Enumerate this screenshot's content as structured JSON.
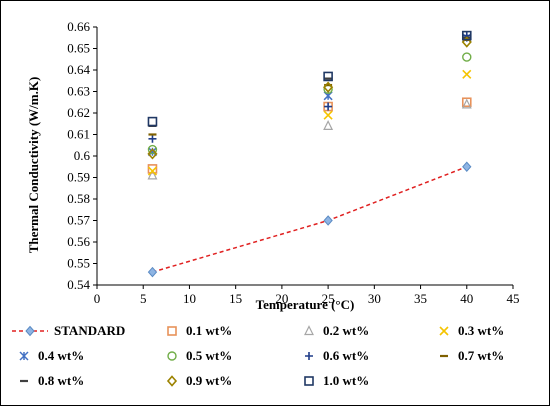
{
  "chart_data": {
    "type": "scatter",
    "title": "",
    "xlabel": "Temperature (°C)",
    "ylabel": "Thermal Conductivity (W/m.K)",
    "xlim": [
      0,
      45
    ],
    "ylim": [
      0.54,
      0.66
    ],
    "xticks": [
      "0",
      "5",
      "10",
      "15",
      "20",
      "25",
      "30",
      "35",
      "40",
      "45"
    ],
    "yticks": [
      "0.54",
      "0.55",
      "0.56",
      "0.57",
      "0.58",
      "0.59",
      "0.6",
      "0.61",
      "0.62",
      "0.63",
      "0.64",
      "0.65",
      "0.66"
    ],
    "grid": false,
    "legend_position": "bottom",
    "x": [
      6,
      25,
      40
    ],
    "series": [
      {
        "name": "STANDARD",
        "values": [
          0.546,
          0.57,
          0.595
        ],
        "marker": "diamond-filled",
        "color": "#8EB4E3",
        "line": "dashed",
        "line_color": "#E02020"
      },
      {
        "name": "0.1 wt%",
        "values": [
          0.594,
          0.623,
          0.625
        ],
        "marker": "square-open",
        "color": "#E8925A"
      },
      {
        "name": "0.2 wt%",
        "values": [
          0.591,
          0.614,
          0.624
        ],
        "marker": "triangle-open",
        "color": "#A6A6A6"
      },
      {
        "name": "0.3 wt%",
        "values": [
          0.593,
          0.619,
          0.638
        ],
        "marker": "x",
        "color": "#F5C400"
      },
      {
        "name": "0.4 wt%",
        "values": [
          0.602,
          0.628,
          0.655
        ],
        "marker": "asterisk",
        "color": "#4472C4"
      },
      {
        "name": "0.5 wt%",
        "values": [
          0.603,
          0.631,
          0.646
        ],
        "marker": "circle-open",
        "color": "#70AD47"
      },
      {
        "name": "0.6 wt%",
        "values": [
          0.608,
          0.623,
          0.656
        ],
        "marker": "plus",
        "color": "#1F3C88"
      },
      {
        "name": "0.7 wt%",
        "values": [
          0.61,
          0.633,
          0.654
        ],
        "marker": "dash",
        "color": "#7F6000"
      },
      {
        "name": "0.8 wt%",
        "values": [
          0.614,
          0.636,
          0.655
        ],
        "marker": "dash",
        "color": "#404040"
      },
      {
        "name": "0.9 wt%",
        "values": [
          0.601,
          0.632,
          0.653
        ],
        "marker": "diamond-open",
        "color": "#9C8200"
      },
      {
        "name": "1.0 wt%",
        "values": [
          0.616,
          0.637,
          0.656
        ],
        "marker": "square-open",
        "color": "#203864"
      }
    ]
  }
}
